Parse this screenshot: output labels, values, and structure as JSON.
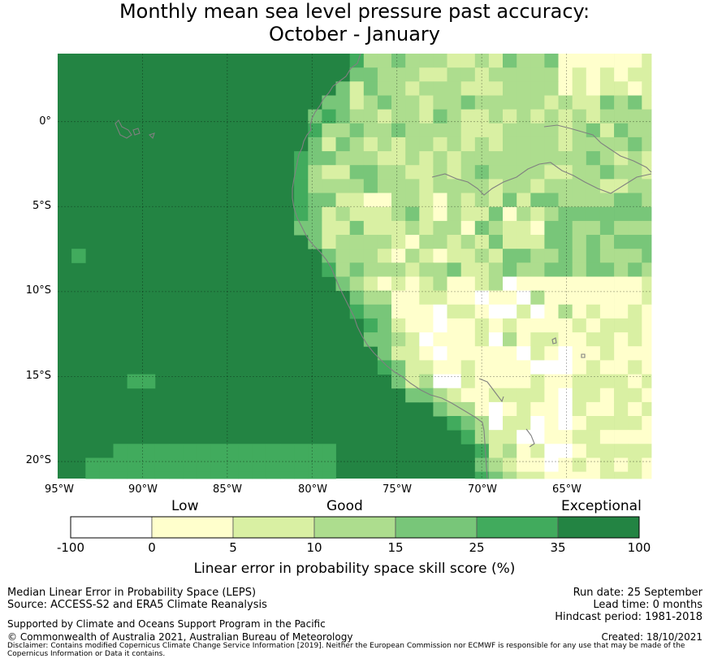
{
  "title": {
    "line1": "Monthly mean sea level pressure past accuracy:",
    "line2": "October - January"
  },
  "map": {
    "lat_labels": [
      "0°",
      "5°S",
      "10°S",
      "15°S",
      "20°S"
    ],
    "lon_labels": [
      "95°W",
      "90°W",
      "85°W",
      "80°W",
      "75°W",
      "70°W",
      "65°W"
    ],
    "lon_range": [
      -95,
      -60
    ],
    "lat_range": [
      -21,
      4
    ],
    "gridlines": true,
    "colors": {
      "c0": "#ffffff",
      "c1": "#ffffcc",
      "c2": "#d9f0a3",
      "c3": "#addd8e",
      "c4": "#78c679",
      "c5": "#41ab5d",
      "c6": "#238443",
      "coast": "#808080"
    }
  },
  "colorbar": {
    "categories": [
      "Low",
      "Good",
      "Exceptional"
    ],
    "ticks": [
      "-100",
      "0",
      "5",
      "10",
      "15",
      "25",
      "35",
      "100"
    ],
    "label": "Linear error in probability space skill score (%)"
  },
  "footer": {
    "left": [
      "Median Linear Error in Probability Space (LEPS)",
      "Source: ACCESS-S2 and ERA5 Climate Reanalysis"
    ],
    "support": "Supported by Climate and Oceans Support Program in the Pacific",
    "copyright": "© Commonwealth of Australia 2021, Australian Bureau of Meteorology",
    "right": [
      "Run date: 25 September",
      "Lead time: 0 months",
      "Hindcast period: 1981-2018"
    ],
    "created": "Created: 18/10/2021",
    "disclaimer": "Disclaimer: Contains modified Copernicus Climate Change Service Information [2019]. Neither the European Commission nor ECMWF is responsible for any use that may be made of the Copernicus Information or Data it contains."
  }
}
